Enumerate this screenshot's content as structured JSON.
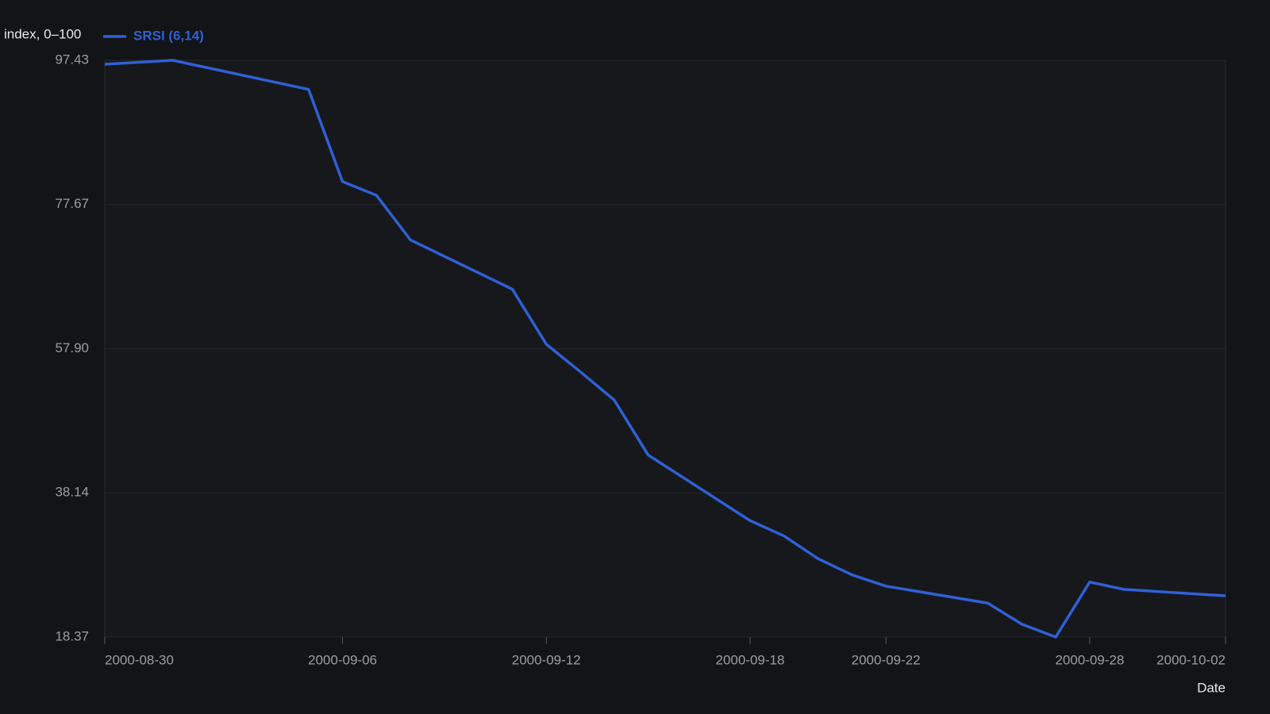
{
  "chart_data": {
    "type": "line",
    "y_label": "index, 0–100",
    "x_label": "Date",
    "x": [
      "2000-08-30",
      "2000-09-01",
      "2000-09-05",
      "2000-09-06",
      "2000-09-07",
      "2000-09-08",
      "2000-09-11",
      "2000-09-12",
      "2000-09-13",
      "2000-09-14",
      "2000-09-15",
      "2000-09-18",
      "2000-09-19",
      "2000-09-20",
      "2000-09-21",
      "2000-09-22",
      "2000-09-25",
      "2000-09-26",
      "2000-09-27",
      "2000-09-28",
      "2000-09-29",
      "2000-10-02"
    ],
    "series": [
      {
        "name": "SRSI (6,14)",
        "color": "#2f60d6",
        "values": [
          96.88,
          97.43,
          93.44,
          80.8,
          78.91,
          72.81,
          66.05,
          58.51,
          54.74,
          50.86,
          43.32,
          34.33,
          32.23,
          29.12,
          26.9,
          25.35,
          23.02,
          20.14,
          18.37,
          25.91,
          24.91,
          24.02
        ]
      }
    ],
    "xlim": [
      "2000-08-30",
      "2000-10-02"
    ],
    "xticks": [
      "2000-08-30",
      "2000-09-06",
      "2000-09-12",
      "2000-09-18",
      "2000-09-22",
      "2000-09-28",
      "2000-10-02"
    ],
    "ylim": [
      18.37,
      97.43
    ],
    "yticks": [
      18.37,
      38.14,
      57.9,
      {
        "value": 57.9,
        "label": "57.90"
      },
      77.67,
      97.43
    ],
    "grid": true
  }
}
